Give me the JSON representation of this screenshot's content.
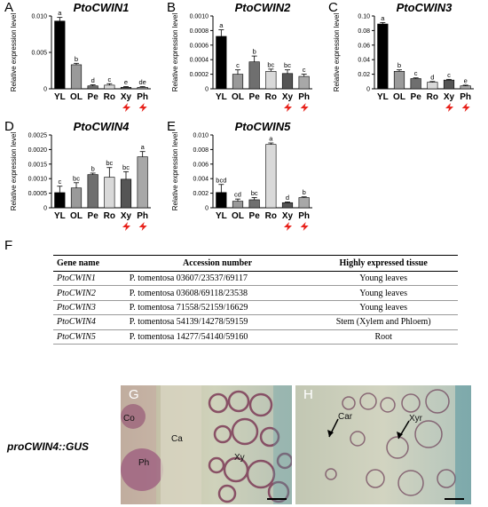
{
  "panel_letters": {
    "a": "A",
    "b": "B",
    "c": "C",
    "d": "D",
    "e": "E",
    "f": "F",
    "g": "G",
    "h": "H"
  },
  "ylabel": "Relative expression level",
  "chart_data": [
    {
      "type": "bar",
      "title": "PtoCWIN1",
      "categories": [
        "YL",
        "OL",
        "Pe",
        "Ro",
        "Xy",
        "Ph"
      ],
      "values": [
        0.0093,
        0.0033,
        0.0004,
        0.0005,
        0.0002,
        0.0002
      ],
      "errors": [
        0.0005,
        0.0002,
        0.00015,
        0.0002,
        0.0001,
        0.0001
      ],
      "letters": [
        "a",
        "b",
        "d",
        "c",
        "e",
        "de"
      ],
      "ylim": [
        0,
        0.01
      ],
      "yticks": [
        "0",
        "0.005",
        "0.010"
      ],
      "ytick_values": [
        0,
        0.005,
        0.01
      ],
      "marked_categories": [
        "Xy",
        "Ph"
      ]
    },
    {
      "type": "bar",
      "title": "PtoCWIN2",
      "categories": [
        "YL",
        "OL",
        "Pe",
        "Ro",
        "Xy",
        "Ph"
      ],
      "values": [
        0.00072,
        0.0002,
        0.00037,
        0.00024,
        0.00021,
        0.00017
      ],
      "errors": [
        9e-05,
        6e-05,
        8e-05,
        3e-05,
        5e-05,
        3e-05
      ],
      "letters": [
        "a",
        "c",
        "b",
        "bc",
        "bc",
        "c"
      ],
      "ylim": [
        0,
        0.001
      ],
      "yticks": [
        "0",
        "0.0002",
        "0.0004",
        "0.0006",
        "0.0008",
        "0.0010"
      ],
      "ytick_values": [
        0,
        0.0002,
        0.0004,
        0.0006,
        0.0008,
        0.001
      ],
      "marked_categories": [
        "Xy",
        "Ph"
      ]
    },
    {
      "type": "bar",
      "title": "PtoCWIN3",
      "categories": [
        "YL",
        "OL",
        "Pe",
        "Ro",
        "Xy",
        "Ph"
      ],
      "values": [
        0.089,
        0.024,
        0.014,
        0.009,
        0.012,
        0.004
      ],
      "errors": [
        0.002,
        0.002,
        0.001,
        0.001,
        0.001,
        0.001
      ],
      "letters": [
        "a",
        "b",
        "c",
        "d",
        "c",
        "e"
      ],
      "ylim": [
        0,
        0.1
      ],
      "yticks": [
        "0",
        "0.02",
        "0.04",
        "0.06",
        "0.08",
        "0.10"
      ],
      "ytick_values": [
        0,
        0.02,
        0.04,
        0.06,
        0.08,
        0.1
      ],
      "marked_categories": [
        "Xy",
        "Ph"
      ]
    },
    {
      "type": "bar",
      "title": "PtoCWIN4",
      "categories": [
        "YL",
        "OL",
        "Pe",
        "Ro",
        "Xy",
        "Ph"
      ],
      "values": [
        0.00052,
        0.00068,
        0.00114,
        0.00105,
        0.00098,
        0.00175
      ],
      "errors": [
        0.00022,
        0.00018,
        5e-05,
        0.00033,
        0.00026,
        0.00018
      ],
      "letters": [
        "c",
        "bc",
        "b",
        "bc",
        "bc",
        "a"
      ],
      "ylim": [
        0,
        0.0025
      ],
      "yticks": [
        "0",
        "0.0005",
        "0.0010",
        "0.0015",
        "0.0020",
        "0.0025"
      ],
      "ytick_values": [
        0,
        0.0005,
        0.001,
        0.0015,
        0.002,
        0.0025
      ],
      "marked_categories": [
        "Xy",
        "Ph"
      ]
    },
    {
      "type": "bar",
      "title": "PtoCWIN5",
      "categories": [
        "YL",
        "OL",
        "Pe",
        "Ro",
        "Xy",
        "Ph"
      ],
      "values": [
        0.0021,
        0.0009,
        0.0011,
        0.0087,
        0.0007,
        0.0014
      ],
      "errors": [
        0.0011,
        0.0003,
        0.0003,
        0.0002,
        0.0001,
        0.0001
      ],
      "letters": [
        "bcd",
        "cd",
        "bc",
        "a",
        "d",
        "b"
      ],
      "ylim": [
        0,
        0.01
      ],
      "yticks": [
        "0",
        "0.002",
        "0.004",
        "0.006",
        "0.008",
        "0.010"
      ],
      "ytick_values": [
        0,
        0.002,
        0.004,
        0.006,
        0.008,
        0.01
      ],
      "marked_categories": [
        "Xy",
        "Ph"
      ]
    }
  ],
  "bar_colors": [
    "#000000",
    "#9a9a9a",
    "#6f6f6f",
    "#d9d9d9",
    "#555555",
    "#a8a8a8"
  ],
  "marker_color": "#e8231c",
  "table": {
    "headers": [
      "Gene name",
      "Accession number",
      "Highly expressed tissue"
    ],
    "rows": [
      [
        "PtoCWIN1",
        "P. tomentosa 03607/23537/69117",
        "Young leaves"
      ],
      [
        "PtoCWIN2",
        "P. tomentosa 03608/69118/23538",
        "Young leaves"
      ],
      [
        "PtoCWIN3",
        "P. tomentosa 71558/52159/16629",
        "Young leaves"
      ],
      [
        "PtoCWIN4",
        "P. tomentosa 54139/14278/59159",
        "Stem (Xylem and Phloem)"
      ],
      [
        "PtoCWIN5",
        "P. tomentosa 14277/54140/59160",
        "Root"
      ]
    ]
  },
  "construct_label": "proCWIN4::GUS",
  "image_labels": {
    "co": "Co",
    "ca": "Ca",
    "ph": "Ph",
    "xy": "Xy",
    "car": "Car",
    "xyr": "Xyr"
  }
}
